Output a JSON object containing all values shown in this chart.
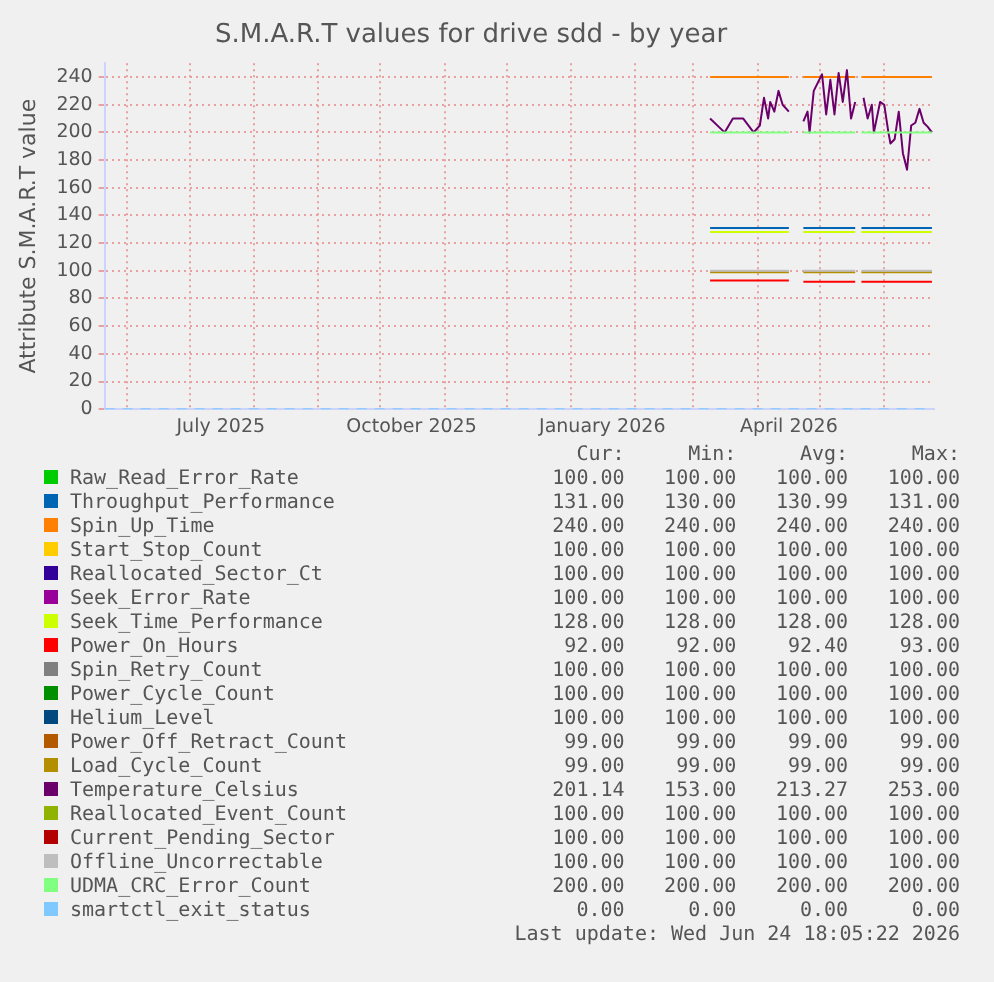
{
  "chart_data": {
    "type": "line",
    "title": "S.M.A.R.T values for drive sdd - by year",
    "ylabel": "Attribute S.M.A.R.T value",
    "xlim": [
      "2025-05-21",
      "2026-06-25"
    ],
    "xticks": [
      {
        "value": "2025-06-01",
        "label": null
      },
      {
        "value": "2025-07-01",
        "label": null
      },
      {
        "value": "2025-07-16",
        "label": "July 2025"
      },
      {
        "value": "2025-08-01",
        "label": null
      },
      {
        "value": "2025-09-01",
        "label": null
      },
      {
        "value": "2025-10-01",
        "label": null
      },
      {
        "value": "2025-10-16",
        "label": "October 2025"
      },
      {
        "value": "2025-11-01",
        "label": null
      },
      {
        "value": "2025-12-01",
        "label": null
      },
      {
        "value": "2026-01-01",
        "label": null
      },
      {
        "value": "2026-01-16",
        "label": "January 2026"
      },
      {
        "value": "2026-02-01",
        "label": null
      },
      {
        "value": "2026-03-01",
        "label": null
      },
      {
        "value": "2026-04-01",
        "label": null
      },
      {
        "value": "2026-04-16",
        "label": "April 2026"
      },
      {
        "value": "2026-05-01",
        "label": null
      },
      {
        "value": "2026-06-01",
        "label": null
      }
    ],
    "ylim": [
      0,
      250
    ],
    "yticks": [
      0,
      20,
      40,
      60,
      80,
      100,
      120,
      140,
      160,
      180,
      200,
      220,
      240
    ],
    "grid": true,
    "legend": "bottom",
    "x": [
      "2026-03-09",
      "2026-04-16",
      "2026-04-20",
      "2026-04-23",
      "2026-05-18",
      "2026-05-20",
      "2026-05-21",
      "2026-06-24"
    ],
    "series": [
      {
        "name": "Raw_Read_Error_Rate",
        "color": "#00cc00",
        "values": [
          null,
          null,
          null,
          null,
          null,
          null,
          null,
          null
        ]
      },
      {
        "name": "Throughput_Performance",
        "color": "#0066b3",
        "values": [
          131,
          131,
          null,
          131,
          131,
          null,
          131,
          131
        ]
      },
      {
        "name": "Spin_Up_Time",
        "color": "#ff8000",
        "values": [
          240,
          240,
          null,
          240,
          240,
          null,
          240,
          240
        ]
      },
      {
        "name": "Start_Stop_Count",
        "color": "#ffcc00",
        "values": [
          null,
          null,
          null,
          null,
          null,
          null,
          null,
          null
        ]
      },
      {
        "name": "Reallocated_Sector_Ct",
        "color": "#330099",
        "values": [
          null,
          null,
          null,
          null,
          null,
          null,
          null,
          null
        ]
      },
      {
        "name": "Seek_Error_Rate",
        "color": "#990099",
        "values": [
          null,
          null,
          null,
          null,
          null,
          null,
          null,
          null
        ]
      },
      {
        "name": "Seek_Time_Performance",
        "color": "#ccff00",
        "values": [
          128,
          128,
          null,
          128,
          128,
          null,
          128,
          128
        ]
      },
      {
        "name": "Power_On_Hours",
        "color": "#ff0000",
        "values": [
          93,
          93,
          null,
          92,
          92,
          null,
          92,
          92
        ]
      },
      {
        "name": "Spin_Retry_Count",
        "color": "#808080",
        "values": [
          null,
          null,
          null,
          null,
          null,
          null,
          null,
          null
        ]
      },
      {
        "name": "Power_Cycle_Count",
        "color": "#008f00",
        "values": [
          null,
          null,
          null,
          null,
          null,
          null,
          null,
          null
        ]
      },
      {
        "name": "Helium_Level",
        "color": "#00487d",
        "values": [
          null,
          null,
          null,
          null,
          null,
          null,
          null,
          null
        ]
      },
      {
        "name": "Power_Off_Retract_Count",
        "color": "#b35a00",
        "values": [
          null,
          null,
          null,
          null,
          null,
          null,
          null,
          null
        ]
      },
      {
        "name": "Load_Cycle_Count",
        "color": "#b38f00",
        "values": [
          99,
          99,
          null,
          99,
          99,
          null,
          99,
          99
        ]
      },
      {
        "name": "Temperature_Celsius",
        "color": "#6b006b",
        "x": [
          "2026-03-09",
          "2026-03-16",
          "2026-03-20",
          "2026-03-25",
          "2026-03-30",
          "2026-04-02",
          "2026-04-04",
          "2026-04-06",
          "2026-04-07",
          "2026-04-09",
          "2026-04-11",
          "2026-04-13",
          "2026-04-16",
          "2026-04-20",
          "2026-04-23",
          "2026-04-25",
          "2026-04-26",
          "2026-04-28",
          "2026-05-02",
          "2026-05-04",
          "2026-05-06",
          "2026-05-08",
          "2026-05-10",
          "2026-05-12",
          "2026-05-14",
          "2026-05-16",
          "2026-05-18",
          "2026-05-20",
          "2026-05-22",
          "2026-05-24",
          "2026-05-26",
          "2026-05-27",
          "2026-05-30",
          "2026-06-01",
          "2026-06-03",
          "2026-06-04",
          "2026-06-06",
          "2026-06-08",
          "2026-06-10",
          "2026-06-12",
          "2026-06-14",
          "2026-06-16",
          "2026-06-18",
          "2026-06-20",
          "2026-06-22",
          "2026-06-24"
        ],
        "values": [
          210,
          200,
          210,
          210,
          200,
          205,
          225,
          210,
          222,
          215,
          230,
          220,
          215,
          null,
          208,
          215,
          200,
          230,
          242,
          213,
          238,
          213,
          243,
          222,
          245,
          210,
          222,
          null,
          225,
          210,
          220,
          200,
          222,
          220,
          200,
          192,
          195,
          215,
          185,
          173,
          205,
          207,
          217,
          207,
          204,
          200
        ]
      },
      {
        "name": "Reallocated_Event_Count",
        "color": "#8fb300",
        "values": [
          null,
          null,
          null,
          null,
          null,
          null,
          null,
          null
        ]
      },
      {
        "name": "Current_Pending_Sector",
        "color": "#b30000",
        "values": [
          null,
          null,
          null,
          null,
          null,
          null,
          null,
          null
        ]
      },
      {
        "name": "Offline_Uncorrectable",
        "color": "#bebebe",
        "values": [
          100,
          100,
          null,
          100,
          100,
          null,
          100,
          100
        ]
      },
      {
        "name": "UDMA_CRC_Error_Count",
        "color": "#80ff80",
        "values": [
          200,
          200,
          null,
          200,
          200,
          null,
          200,
          200
        ]
      },
      {
        "name": "smartctl_exit_status",
        "color": "#80c9ff",
        "line_style": "dashed",
        "x": [
          "2025-05-21",
          "2026-06-24"
        ],
        "values": [
          0,
          0
        ]
      }
    ],
    "annotations": [
      "Cur:",
      "Min:",
      "Avg:",
      "Max:",
      "100.00",
      "100.00",
      "100.00",
      "100.00",
      "131.00",
      "130.00",
      "130.99",
      "131.00",
      "240.00",
      "240.00",
      "240.00",
      "240.00",
      "100.00",
      "100.00",
      "100.00",
      "100.00",
      "100.00",
      "100.00",
      "100.00",
      "100.00",
      "100.00",
      "100.00",
      "100.00",
      "100.00",
      "128.00",
      "128.00",
      "128.00",
      "128.00",
      "92.00",
      "92.00",
      "92.40",
      "93.00",
      "100.00",
      "100.00",
      "100.00",
      "100.00",
      "100.00",
      "100.00",
      "100.00",
      "100.00",
      "100.00",
      "100.00",
      "100.00",
      "100.00",
      "99.00",
      "99.00",
      "99.00",
      "99.00",
      "99.00",
      "99.00",
      "99.00",
      "99.00",
      "201.14",
      "153.00",
      "213.27",
      "253.00",
      "100.00",
      "100.00",
      "100.00",
      "100.00",
      "100.00",
      "100.00",
      "100.00",
      "100.00",
      "100.00",
      "100.00",
      "100.00",
      "100.00",
      "200.00",
      "200.00",
      "200.00",
      "200.00",
      "0.00",
      "0.00",
      "0.00",
      "0.00",
      "Last update: Wed Jun 24 18:05:22 2026"
    ]
  }
}
